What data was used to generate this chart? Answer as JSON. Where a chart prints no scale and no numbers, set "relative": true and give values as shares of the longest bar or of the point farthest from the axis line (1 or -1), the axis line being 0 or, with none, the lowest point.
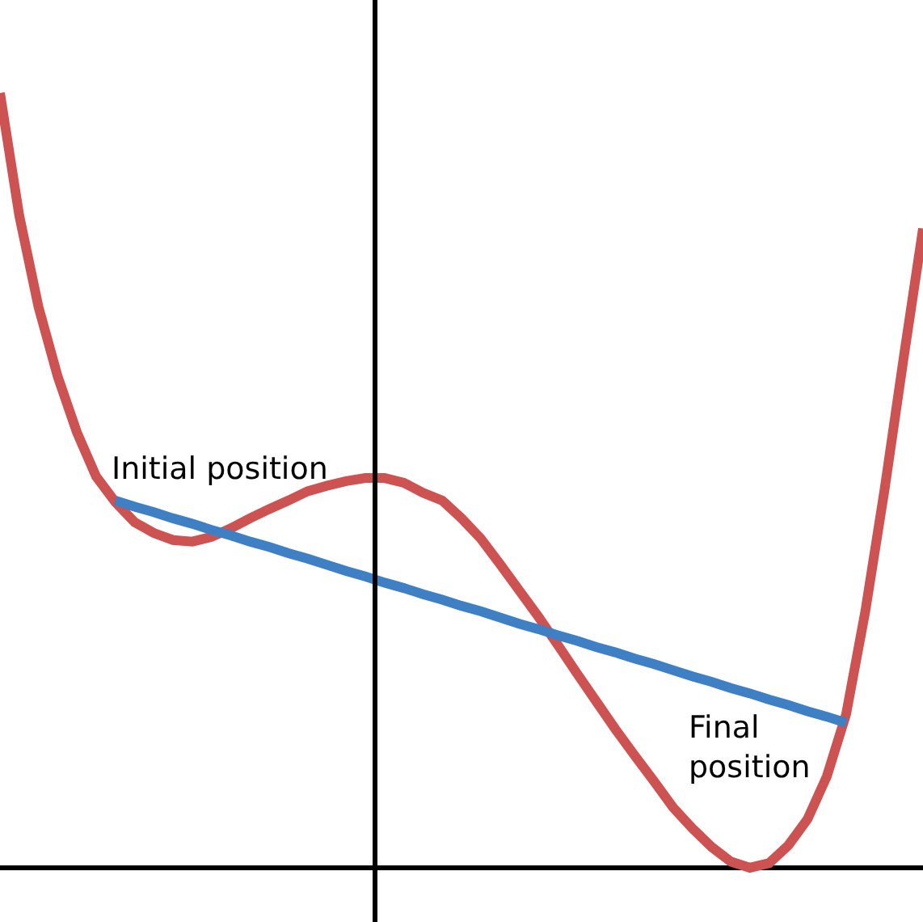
{
  "chart_data": {
    "type": "line",
    "relative": true,
    "marker": "none",
    "line_style": "solid",
    "categories": [
      null,
      null,
      null,
      null,
      null,
      null,
      null,
      null,
      null,
      null,
      null,
      null,
      null,
      null,
      null,
      null,
      null,
      null,
      null,
      null,
      null,
      null,
      null,
      null,
      null,
      null,
      null,
      null,
      null,
      null,
      null,
      null,
      null,
      null,
      null,
      null,
      null,
      null,
      null,
      null,
      null,
      null,
      null,
      null,
      null,
      null,
      null,
      null,
      null
    ],
    "series": [
      {
        "color": "#cd5252",
        "values": [
          1.0,
          0.842,
          0.724,
          0.634,
          0.562,
          0.505,
          0.472,
          0.446,
          0.432,
          0.423,
          0.421,
          0.427,
          0.438,
          0.451,
          0.463,
          0.474,
          0.486,
          0.493,
          0.499,
          0.503,
          0.503,
          0.497,
          0.484,
          0.474,
          0.451,
          0.425,
          0.392,
          0.358,
          0.324,
          0.288,
          0.251,
          0.215,
          0.179,
          0.145,
          0.112,
          0.078,
          0.051,
          0.027,
          0.008,
          0,
          0.006,
          0.029,
          0.063,
          0.118,
          0.198,
          0.331,
          0.488,
          0.659,
          0.825
        ]
      },
      {
        "color": "#3f7fc4",
        "values": [
          null,
          null,
          null,
          null,
          null,
          null,
          0.474,
          0.466,
          0.459,
          0.451,
          0.444,
          0.436,
          0.429,
          0.421,
          0.414,
          0.406,
          0.399,
          0.391,
          0.383,
          0.376,
          0.368,
          0.361,
          0.353,
          0.346,
          0.338,
          0.331,
          0.323,
          0.315,
          0.308,
          0.3,
          0.293,
          0.285,
          0.278,
          0.27,
          0.263,
          0.255,
          0.247,
          0.24,
          0.232,
          0.225,
          0.217,
          0.21,
          0.202,
          0.195,
          0.187,
          null,
          null,
          null,
          null
        ]
      }
    ],
    "annotations": [
      "Initial position",
      "Final\nposition"
    ]
  }
}
